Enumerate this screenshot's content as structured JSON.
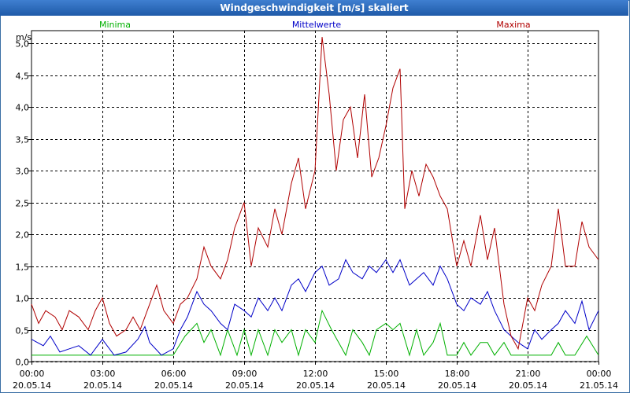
{
  "window": {
    "title": "Windgeschwindigkeit [m/s] skaliert"
  },
  "chart_data": {
    "type": "line",
    "ylabel": "m/s",
    "ylim": [
      0,
      5.2
    ],
    "yticks": [
      {
        "value": 0,
        "label": "0,0"
      },
      {
        "value": 0.5,
        "label": "0,5"
      },
      {
        "value": 1.0,
        "label": "1,0"
      },
      {
        "value": 1.5,
        "label": "1,5"
      },
      {
        "value": 2.0,
        "label": "2,0"
      },
      {
        "value": 2.5,
        "label": "2,5"
      },
      {
        "value": 3.0,
        "label": "3,0"
      },
      {
        "value": 3.5,
        "label": "3,5"
      },
      {
        "value": 4.0,
        "label": "4,0"
      },
      {
        "value": 4.5,
        "label": "4,5"
      },
      {
        "value": 5.0,
        "label": "5,0"
      }
    ],
    "xlim": [
      0,
      24
    ],
    "xticks": [
      {
        "value": 0,
        "time": "00:00",
        "date": "20.05.14"
      },
      {
        "value": 3,
        "time": "03:00",
        "date": "20.05.14"
      },
      {
        "value": 6,
        "time": "06:00",
        "date": "20.05.14"
      },
      {
        "value": 9,
        "time": "09:00",
        "date": "20.05.14"
      },
      {
        "value": 12,
        "time": "12:00",
        "date": "20.05.14"
      },
      {
        "value": 15,
        "time": "15:00",
        "date": "20.05.14"
      },
      {
        "value": 18,
        "time": "18:00",
        "date": "20.05.14"
      },
      {
        "value": 21,
        "time": "21:00",
        "date": "20.05.14"
      },
      {
        "value": 24,
        "time": "00:00",
        "date": "21.05.14"
      }
    ],
    "grid": true,
    "series": [
      {
        "name": "Minima",
        "color": "#00b000",
        "legend_position": "top-left",
        "points": [
          [
            0,
            0.1
          ],
          [
            1,
            0.1
          ],
          [
            2,
            0.1
          ],
          [
            3,
            0.1
          ],
          [
            4,
            0.1
          ],
          [
            5,
            0.1
          ],
          [
            6,
            0.1
          ],
          [
            6.5,
            0.4
          ],
          [
            7,
            0.6
          ],
          [
            7.3,
            0.3
          ],
          [
            7.6,
            0.5
          ],
          [
            8,
            0.1
          ],
          [
            8.3,
            0.5
          ],
          [
            8.7,
            0.1
          ],
          [
            9,
            0.5
          ],
          [
            9.3,
            0.1
          ],
          [
            9.6,
            0.5
          ],
          [
            10,
            0.1
          ],
          [
            10.3,
            0.5
          ],
          [
            10.6,
            0.3
          ],
          [
            11,
            0.5
          ],
          [
            11.3,
            0.1
          ],
          [
            11.6,
            0.5
          ],
          [
            12,
            0.3
          ],
          [
            12.3,
            0.8
          ],
          [
            12.7,
            0.5
          ],
          [
            13,
            0.3
          ],
          [
            13.3,
            0.1
          ],
          [
            13.6,
            0.5
          ],
          [
            14,
            0.3
          ],
          [
            14.3,
            0.1
          ],
          [
            14.6,
            0.5
          ],
          [
            15,
            0.6
          ],
          [
            15.3,
            0.5
          ],
          [
            15.6,
            0.6
          ],
          [
            16,
            0.1
          ],
          [
            16.3,
            0.5
          ],
          [
            16.6,
            0.1
          ],
          [
            17,
            0.3
          ],
          [
            17.3,
            0.6
          ],
          [
            17.6,
            0.1
          ],
          [
            18,
            0.1
          ],
          [
            18.3,
            0.3
          ],
          [
            18.6,
            0.1
          ],
          [
            19,
            0.3
          ],
          [
            19.3,
            0.3
          ],
          [
            19.6,
            0.1
          ],
          [
            20,
            0.3
          ],
          [
            20.3,
            0.1
          ],
          [
            21,
            0.1
          ],
          [
            22,
            0.1
          ],
          [
            22.3,
            0.3
          ],
          [
            22.6,
            0.1
          ],
          [
            23,
            0.1
          ],
          [
            23.5,
            0.4
          ],
          [
            24,
            0.1
          ]
        ]
      },
      {
        "name": "Mittelwerte",
        "color": "#0000c8",
        "legend_position": "top-center",
        "points": [
          [
            0,
            0.35
          ],
          [
            0.5,
            0.25
          ],
          [
            0.8,
            0.4
          ],
          [
            1.2,
            0.15
          ],
          [
            1.6,
            0.2
          ],
          [
            2,
            0.25
          ],
          [
            2.5,
            0.1
          ],
          [
            3,
            0.35
          ],
          [
            3.5,
            0.1
          ],
          [
            4,
            0.15
          ],
          [
            4.5,
            0.35
          ],
          [
            4.8,
            0.55
          ],
          [
            5,
            0.3
          ],
          [
            5.5,
            0.1
          ],
          [
            6,
            0.2
          ],
          [
            6.3,
            0.5
          ],
          [
            6.6,
            0.7
          ],
          [
            7,
            1.1
          ],
          [
            7.3,
            0.9
          ],
          [
            7.6,
            0.8
          ],
          [
            8,
            0.6
          ],
          [
            8.3,
            0.5
          ],
          [
            8.6,
            0.9
          ],
          [
            9,
            0.8
          ],
          [
            9.3,
            0.7
          ],
          [
            9.6,
            1.0
          ],
          [
            10,
            0.8
          ],
          [
            10.3,
            1.0
          ],
          [
            10.6,
            0.8
          ],
          [
            11,
            1.2
          ],
          [
            11.3,
            1.3
          ],
          [
            11.6,
            1.1
          ],
          [
            12,
            1.4
          ],
          [
            12.3,
            1.5
          ],
          [
            12.6,
            1.2
          ],
          [
            13,
            1.3
          ],
          [
            13.3,
            1.6
          ],
          [
            13.6,
            1.4
          ],
          [
            14,
            1.3
          ],
          [
            14.3,
            1.5
          ],
          [
            14.6,
            1.4
          ],
          [
            15,
            1.6
          ],
          [
            15.3,
            1.4
          ],
          [
            15.6,
            1.6
          ],
          [
            16,
            1.2
          ],
          [
            16.3,
            1.3
          ],
          [
            16.6,
            1.4
          ],
          [
            17,
            1.2
          ],
          [
            17.3,
            1.5
          ],
          [
            17.6,
            1.3
          ],
          [
            18,
            0.9
          ],
          [
            18.3,
            0.8
          ],
          [
            18.6,
            1.0
          ],
          [
            19,
            0.9
          ],
          [
            19.3,
            1.1
          ],
          [
            19.6,
            0.8
          ],
          [
            20,
            0.5
          ],
          [
            20.3,
            0.4
          ],
          [
            20.6,
            0.3
          ],
          [
            21,
            0.2
          ],
          [
            21.3,
            0.5
          ],
          [
            21.6,
            0.35
          ],
          [
            22,
            0.5
          ],
          [
            22.3,
            0.6
          ],
          [
            22.6,
            0.8
          ],
          [
            23,
            0.6
          ],
          [
            23.3,
            0.95
          ],
          [
            23.6,
            0.5
          ],
          [
            24,
            0.8
          ]
        ]
      },
      {
        "name": "Maxima",
        "color": "#b00000",
        "legend_position": "top-right",
        "points": [
          [
            0,
            0.9
          ],
          [
            0.3,
            0.6
          ],
          [
            0.6,
            0.8
          ],
          [
            1,
            0.7
          ],
          [
            1.3,
            0.5
          ],
          [
            1.6,
            0.8
          ],
          [
            2,
            0.7
          ],
          [
            2.4,
            0.5
          ],
          [
            2.7,
            0.8
          ],
          [
            3,
            1.0
          ],
          [
            3.3,
            0.6
          ],
          [
            3.6,
            0.4
          ],
          [
            4,
            0.5
          ],
          [
            4.3,
            0.7
          ],
          [
            4.6,
            0.5
          ],
          [
            5,
            0.9
          ],
          [
            5.3,
            1.2
          ],
          [
            5.6,
            0.8
          ],
          [
            6,
            0.6
          ],
          [
            6.3,
            0.9
          ],
          [
            6.6,
            1.0
          ],
          [
            7,
            1.3
          ],
          [
            7.3,
            1.8
          ],
          [
            7.6,
            1.5
          ],
          [
            8,
            1.3
          ],
          [
            8.3,
            1.6
          ],
          [
            8.6,
            2.1
          ],
          [
            9,
            2.5
          ],
          [
            9.3,
            1.5
          ],
          [
            9.6,
            2.1
          ],
          [
            10,
            1.8
          ],
          [
            10.3,
            2.4
          ],
          [
            10.6,
            2.0
          ],
          [
            11,
            2.8
          ],
          [
            11.3,
            3.2
          ],
          [
            11.6,
            2.4
          ],
          [
            12,
            3.0
          ],
          [
            12.3,
            5.1
          ],
          [
            12.6,
            4.2
          ],
          [
            12.9,
            3.0
          ],
          [
            13.2,
            3.8
          ],
          [
            13.5,
            4.0
          ],
          [
            13.8,
            3.2
          ],
          [
            14.1,
            4.2
          ],
          [
            14.4,
            2.9
          ],
          [
            14.7,
            3.2
          ],
          [
            15,
            3.7
          ],
          [
            15.3,
            4.3
          ],
          [
            15.6,
            4.6
          ],
          [
            15.8,
            2.4
          ],
          [
            16.1,
            3.0
          ],
          [
            16.4,
            2.6
          ],
          [
            16.7,
            3.1
          ],
          [
            17,
            2.9
          ],
          [
            17.3,
            2.6
          ],
          [
            17.6,
            2.4
          ],
          [
            18,
            1.5
          ],
          [
            18.3,
            1.9
          ],
          [
            18.6,
            1.5
          ],
          [
            19,
            2.3
          ],
          [
            19.3,
            1.6
          ],
          [
            19.6,
            2.1
          ],
          [
            20,
            0.9
          ],
          [
            20.3,
            0.4
          ],
          [
            20.6,
            0.2
          ],
          [
            21,
            1.0
          ],
          [
            21.3,
            0.8
          ],
          [
            21.6,
            1.2
          ],
          [
            22,
            1.5
          ],
          [
            22.3,
            2.4
          ],
          [
            22.6,
            1.5
          ],
          [
            23,
            1.5
          ],
          [
            23.3,
            2.2
          ],
          [
            23.6,
            1.8
          ],
          [
            24,
            1.6
          ]
        ]
      }
    ]
  }
}
